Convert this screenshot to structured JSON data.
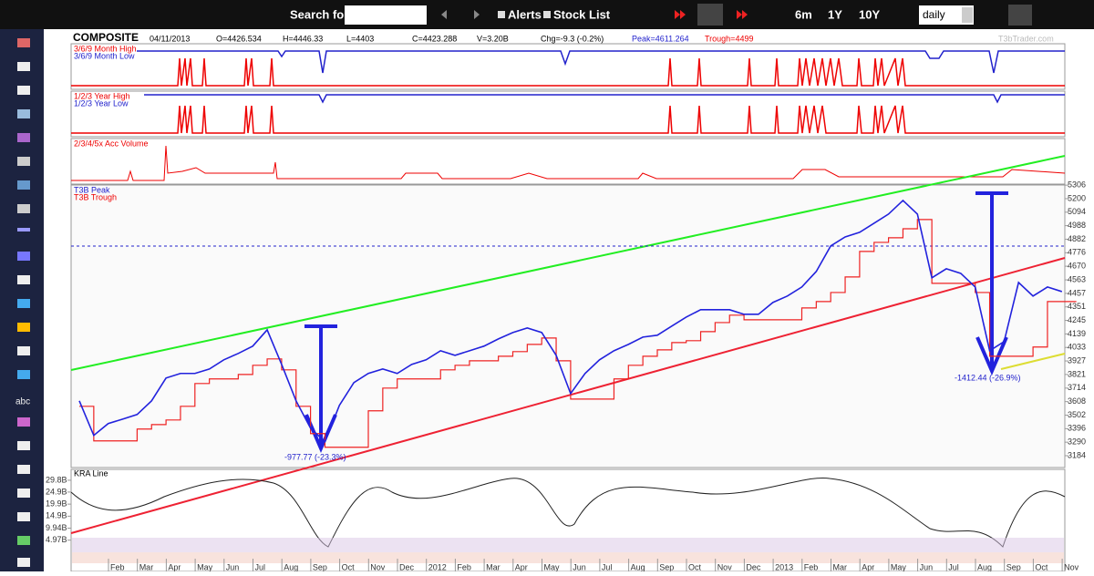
{
  "toolbar": {
    "search_label": "Search for:",
    "alerts": "Alerts",
    "stock_list": "Stock List",
    "ranges": [
      "6m",
      "1Y",
      "10Y"
    ],
    "interval": "daily"
  },
  "header": {
    "symbol": "COMPOSITE",
    "date": "04/11/2013",
    "open": "O=4426.534",
    "high": "H=4446.33",
    "low": "L=4403",
    "close": "C=4423.288",
    "volume": "V=3.20B",
    "change": "Chg=-9.3 (-0.2%)",
    "peak": "Peak=4611.264",
    "trough": "Trough=4499",
    "watermark": "T3bTrader.com"
  },
  "panels": [
    {
      "labels": [
        "3/6/9 Month High",
        "3/6/9 Month Low"
      ]
    },
    {
      "labels": [
        "1/2/3 Year High",
        "1/2/3 Year Low"
      ]
    },
    {
      "labels": [
        "2/3/4/5x Acc Volume"
      ]
    }
  ],
  "price_panel": {
    "labels": [
      "T3B Peak",
      "T3B Trough"
    ],
    "ylim": [
      3091,
      5307
    ],
    "yticks": [
      5306,
      5200,
      5094,
      4988,
      4882,
      4776,
      4670,
      4563,
      4457,
      4351,
      4245,
      4139,
      4033,
      3927,
      3821,
      3714,
      3608,
      3502,
      3396,
      3290,
      3184
    ],
    "values": [
      3614,
      3343,
      3436,
      3471,
      3507,
      3614,
      3793,
      3829,
      3829,
      3864,
      3936,
      3986,
      4043,
      4171,
      3900,
      3614,
      3400,
      3293,
      3579,
      3757,
      3829,
      3864,
      3829,
      3900,
      3936,
      4007,
      3971,
      4007,
      4043,
      4100,
      4150,
      4186,
      4150,
      3971,
      3671,
      3829,
      3936,
      4007,
      4057,
      4114,
      4129,
      4200,
      4271,
      4329,
      4329,
      4329,
      4293,
      4293,
      4386,
      4436,
      4507,
      4629,
      4829,
      4900,
      4936,
      5007,
      5079,
      5186,
      5079,
      4579,
      4650,
      4614,
      4507,
      4007,
      4079,
      4543,
      4436,
      4507,
      4471
    ],
    "annotations": [
      "-977.77 (-23.3%)",
      "-1412.44 (-26.9%)"
    ]
  },
  "volume_panel": {
    "label": "KRA Line",
    "ylim": [
      -8,
      34.3
    ],
    "yticks": [
      {
        "value": 29.8,
        "label": "29.8B"
      },
      {
        "value": 24.9,
        "label": "24.9B"
      },
      {
        "value": 19.9,
        "label": "19.9B"
      },
      {
        "value": 14.9,
        "label": "14.9B"
      },
      {
        "value": 9.94,
        "label": "9.94B"
      },
      {
        "value": 4.97,
        "label": "4.97B"
      }
    ]
  },
  "months": [
    "Feb",
    "Mar",
    "Apr",
    "May",
    "Jun",
    "Jul",
    "Aug",
    "Sep",
    "Oct",
    "Nov",
    "Dec",
    "2012",
    "Feb",
    "Mar",
    "Apr",
    "May",
    "Jun",
    "Jul",
    "Aug",
    "Sep",
    "Oct",
    "Nov",
    "Dec",
    "2013",
    "Feb",
    "Mar",
    "Apr",
    "May",
    "Jun",
    "Jul",
    "Aug",
    "Sep",
    "Oct",
    "Nov"
  ]
}
